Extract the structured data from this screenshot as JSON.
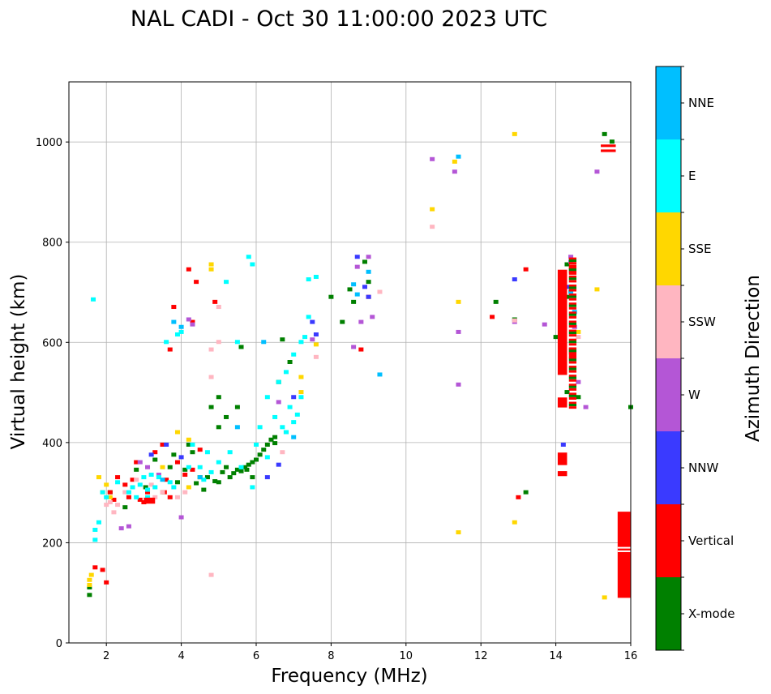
{
  "chart_data": {
    "type": "scatter",
    "title": "NAL CADI - Oct 30 11:00:00 2023 UTC",
    "xlabel": "Frequency (MHz)",
    "ylabel": "Virtual height (km)",
    "xlim": [
      1,
      16
    ],
    "ylim": [
      0,
      1120
    ],
    "xticks": [
      2,
      4,
      6,
      8,
      10,
      12,
      14,
      16
    ],
    "yticks": [
      0,
      200,
      400,
      600,
      800,
      1000
    ],
    "grid": true,
    "colorbar": {
      "label": "Azimuth Direction",
      "categories": [
        "X-mode",
        "Vertical",
        "NNW",
        "W",
        "SSW",
        "SSE",
        "E",
        "NNE"
      ],
      "colors": [
        "#008000",
        "#ff0000",
        "#3a3aff",
        "#b456d6",
        "#ffb6c1",
        "#ffd700",
        "#00ffff",
        "#00bfff"
      ]
    },
    "series": [
      {
        "name": "X-mode",
        "points": [
          [
            1.55,
            95
          ],
          [
            1.55,
            110
          ],
          [
            2.1,
            300
          ],
          [
            2.5,
            270
          ],
          [
            3.05,
            310
          ],
          [
            3.5,
            300
          ],
          [
            3.7,
            350
          ],
          [
            3.9,
            320
          ],
          [
            4.1,
            345
          ],
          [
            4.2,
            395
          ],
          [
            4.5,
            330
          ],
          [
            4.7,
            330
          ],
          [
            4.9,
            322
          ],
          [
            5.0,
            320
          ],
          [
            5.1,
            340
          ],
          [
            5.2,
            350
          ],
          [
            5.3,
            330
          ],
          [
            5.4,
            338
          ],
          [
            5.5,
            345
          ],
          [
            5.6,
            342
          ],
          [
            5.7,
            350
          ],
          [
            5.8,
            355
          ],
          [
            5.9,
            360
          ],
          [
            6.0,
            365
          ],
          [
            6.1,
            375
          ],
          [
            6.2,
            385
          ],
          [
            6.3,
            395
          ],
          [
            6.4,
            405
          ],
          [
            6.5,
            410
          ],
          [
            6.5,
            398
          ],
          [
            6.8,
            420
          ],
          [
            5.0,
            430
          ],
          [
            5.2,
            450
          ],
          [
            5.5,
            470
          ],
          [
            5.0,
            490
          ],
          [
            5.6,
            590
          ],
          [
            6.7,
            605
          ],
          [
            6.6,
            520
          ],
          [
            6.9,
            560
          ],
          [
            8.0,
            690
          ],
          [
            8.3,
            640
          ],
          [
            8.5,
            705
          ],
          [
            8.6,
            680
          ],
          [
            8.9,
            760
          ],
          [
            9.0,
            720
          ],
          [
            12.4,
            680
          ],
          [
            12.9,
            645
          ],
          [
            13.2,
            300
          ],
          [
            14.0,
            610
          ],
          [
            14.3,
            755
          ],
          [
            14.3,
            690
          ],
          [
            14.3,
            500
          ],
          [
            14.6,
            490
          ],
          [
            15.3,
            1015
          ],
          [
            15.5,
            1000
          ],
          [
            16.0,
            470
          ],
          [
            4.8,
            470
          ],
          [
            4.3,
            380
          ],
          [
            3.8,
            375
          ],
          [
            3.3,
            365
          ],
          [
            2.8,
            345
          ],
          [
            5.75,
            345
          ],
          [
            4.6,
            305
          ],
          [
            4.4,
            318
          ],
          [
            5.9,
            330
          ]
        ]
      },
      {
        "name": "Vertical",
        "points": [
          [
            1.7,
            150
          ],
          [
            1.9,
            145
          ],
          [
            2.0,
            120
          ],
          [
            2.1,
            300
          ],
          [
            2.3,
            330
          ],
          [
            2.5,
            315
          ],
          [
            2.6,
            290
          ],
          [
            2.8,
            360
          ],
          [
            2.9,
            285
          ],
          [
            3.0,
            280
          ],
          [
            3.1,
            300
          ],
          [
            3.3,
            380
          ],
          [
            3.5,
            395
          ],
          [
            3.55,
            300
          ],
          [
            3.7,
            290
          ],
          [
            3.9,
            360
          ],
          [
            4.1,
            335
          ],
          [
            4.3,
            345
          ],
          [
            4.2,
            745
          ],
          [
            4.4,
            720
          ],
          [
            4.3,
            640
          ],
          [
            3.7,
            585
          ],
          [
            3.8,
            670
          ],
          [
            4.5,
            385
          ],
          [
            4.9,
            680
          ],
          [
            3.6,
            325
          ],
          [
            2.7,
            325
          ],
          [
            2.2,
            285
          ],
          [
            8.8,
            585
          ],
          [
            9.0,
            690
          ],
          [
            13.2,
            745
          ],
          [
            13.0,
            290
          ],
          [
            12.3,
            650
          ]
        ]
      },
      {
        "name": "NNW",
        "points": [
          [
            3.2,
            375
          ],
          [
            3.6,
            395
          ],
          [
            4.0,
            370
          ],
          [
            6.3,
            330
          ],
          [
            6.6,
            355
          ],
          [
            7.5,
            640
          ],
          [
            7.6,
            615
          ],
          [
            8.7,
            770
          ],
          [
            8.9,
            710
          ],
          [
            9.0,
            690
          ],
          [
            12.9,
            725
          ],
          [
            7.0,
            490
          ],
          [
            14.3,
            710
          ],
          [
            14.2,
            395
          ]
        ]
      },
      {
        "name": "W",
        "points": [
          [
            2.4,
            228
          ],
          [
            2.6,
            232
          ],
          [
            2.9,
            360
          ],
          [
            3.1,
            350
          ],
          [
            4.0,
            250
          ],
          [
            4.2,
            645
          ],
          [
            4.3,
            635
          ],
          [
            7.5,
            605
          ],
          [
            8.6,
            590
          ],
          [
            8.7,
            750
          ],
          [
            8.8,
            640
          ],
          [
            9.0,
            770
          ],
          [
            9.1,
            650
          ],
          [
            10.7,
            965
          ],
          [
            11.3,
            940
          ],
          [
            11.4,
            620
          ],
          [
            11.4,
            515
          ],
          [
            12.9,
            640
          ],
          [
            13.7,
            635
          ],
          [
            14.4,
            770
          ],
          [
            14.4,
            760
          ],
          [
            14.5,
            630
          ],
          [
            14.6,
            520
          ],
          [
            14.8,
            470
          ],
          [
            15.1,
            940
          ],
          [
            6.6,
            480
          ],
          [
            3.4,
            335
          ]
        ]
      },
      {
        "name": "SSW",
        "points": [
          [
            2.0,
            275
          ],
          [
            2.1,
            280
          ],
          [
            2.2,
            260
          ],
          [
            2.3,
            275
          ],
          [
            2.5,
            300
          ],
          [
            2.8,
            325
          ],
          [
            3.2,
            315
          ],
          [
            3.3,
            290
          ],
          [
            3.5,
            300
          ],
          [
            4.8,
            585
          ],
          [
            4.8,
            530
          ],
          [
            4.8,
            135
          ],
          [
            5.0,
            670
          ],
          [
            5.0,
            600
          ],
          [
            6.7,
            380
          ],
          [
            7.6,
            570
          ],
          [
            9.3,
            700
          ],
          [
            10.7,
            830
          ],
          [
            12.9,
            643
          ],
          [
            14.6,
            610
          ],
          [
            15.9,
            215
          ],
          [
            3.9,
            290
          ],
          [
            4.1,
            300
          ]
        ]
      },
      {
        "name": "SSE",
        "points": [
          [
            1.55,
            115
          ],
          [
            1.55,
            125
          ],
          [
            1.6,
            135
          ],
          [
            1.8,
            330
          ],
          [
            1.9,
            300
          ],
          [
            2.0,
            315
          ],
          [
            2.1,
            290
          ],
          [
            3.5,
            350
          ],
          [
            3.9,
            420
          ],
          [
            4.2,
            405
          ],
          [
            4.2,
            310
          ],
          [
            4.8,
            755
          ],
          [
            4.8,
            745
          ],
          [
            7.2,
            530
          ],
          [
            7.2,
            500
          ],
          [
            7.6,
            595
          ],
          [
            10.7,
            865
          ],
          [
            11.3,
            960
          ],
          [
            11.4,
            680
          ],
          [
            11.4,
            220
          ],
          [
            12.9,
            1015
          ],
          [
            12.9,
            240
          ],
          [
            14.6,
            620
          ],
          [
            15.1,
            705
          ],
          [
            15.3,
            90
          ],
          [
            4.5,
            330
          ]
        ]
      },
      {
        "name": "E",
        "points": [
          [
            1.65,
            685
          ],
          [
            1.7,
            205
          ],
          [
            1.7,
            225
          ],
          [
            1.8,
            240
          ],
          [
            1.9,
            300
          ],
          [
            2.0,
            290
          ],
          [
            2.3,
            320
          ],
          [
            2.6,
            300
          ],
          [
            2.8,
            290
          ],
          [
            2.9,
            315
          ],
          [
            3.0,
            330
          ],
          [
            3.1,
            305
          ],
          [
            3.2,
            335
          ],
          [
            3.3,
            310
          ],
          [
            3.6,
            600
          ],
          [
            3.7,
            320
          ],
          [
            3.8,
            310
          ],
          [
            3.9,
            615
          ],
          [
            4.0,
            620
          ],
          [
            4.2,
            350
          ],
          [
            4.3,
            395
          ],
          [
            4.5,
            350
          ],
          [
            4.7,
            380
          ],
          [
            5.0,
            360
          ],
          [
            5.2,
            720
          ],
          [
            5.3,
            380
          ],
          [
            5.5,
            600
          ],
          [
            5.8,
            770
          ],
          [
            5.9,
            755
          ],
          [
            6.0,
            395
          ],
          [
            6.3,
            370
          ],
          [
            6.5,
            450
          ],
          [
            6.7,
            430
          ],
          [
            6.8,
            420
          ],
          [
            6.9,
            470
          ],
          [
            7.0,
            440
          ],
          [
            7.1,
            455
          ],
          [
            7.2,
            490
          ],
          [
            7.3,
            610
          ],
          [
            7.4,
            725
          ],
          [
            7.6,
            730
          ],
          [
            5.9,
            310
          ],
          [
            6.1,
            430
          ],
          [
            6.3,
            490
          ],
          [
            6.6,
            520
          ],
          [
            6.8,
            540
          ],
          [
            7.0,
            575
          ],
          [
            7.2,
            600
          ],
          [
            7.4,
            650
          ],
          [
            3.1,
            290
          ],
          [
            2.7,
            310
          ],
          [
            3.4,
            330
          ],
          [
            4.6,
            325
          ],
          [
            4.8,
            340
          ],
          [
            5.6,
            350
          ]
        ]
      },
      {
        "name": "NNE",
        "points": [
          [
            3.5,
            325
          ],
          [
            3.8,
            640
          ],
          [
            4.0,
            630
          ],
          [
            4.5,
            330
          ],
          [
            5.5,
            430
          ],
          [
            6.2,
            600
          ],
          [
            7.0,
            410
          ],
          [
            8.6,
            715
          ],
          [
            8.7,
            695
          ],
          [
            9.0,
            740
          ],
          [
            9.3,
            535
          ],
          [
            11.4,
            970
          ],
          [
            14.4,
            700
          ],
          [
            14.5,
            660
          ]
        ]
      }
    ],
    "bars": [
      {
        "name": "Vertical",
        "x": [
          14.05,
          14.3
        ],
        "y": [
          535,
          745
        ]
      },
      {
        "name": "Vertical",
        "x": [
          14.05,
          14.3
        ],
        "y": [
          470,
          490
        ]
      },
      {
        "name": "Vertical",
        "x": [
          14.05,
          14.3
        ],
        "y": [
          355,
          380
        ]
      },
      {
        "name": "Vertical",
        "x": [
          14.05,
          14.3
        ],
        "y": [
          333,
          343
        ]
      },
      {
        "name": "Vertical",
        "x": [
          15.65,
          16.0
        ],
        "y": [
          90,
          262
        ]
      },
      {
        "name": "Vertical",
        "x": [
          14.35,
          14.55
        ],
        "y": [
          735,
          755
        ]
      },
      {
        "name": "Vertical",
        "x": [
          14.35,
          14.55
        ],
        "y": [
          570,
          590
        ]
      },
      {
        "name": "Vertical",
        "x": [
          15.2,
          15.6
        ],
        "y": [
          980,
          985
        ]
      },
      {
        "name": "Vertical",
        "x": [
          15.2,
          15.6
        ],
        "y": [
          990,
          995
        ]
      },
      {
        "name": "Vertical",
        "x": [
          3.0,
          3.3
        ],
        "y": [
          278,
          290
        ]
      }
    ],
    "stripes": [
      {
        "name": "Vertical",
        "x": [
          14.35,
          14.55
        ],
        "y": [
          470,
          770
        ],
        "step": 9
      },
      {
        "name": "X-mode",
        "x": [
          14.35,
          14.55
        ],
        "y": [
          475,
          765
        ],
        "step": 18
      }
    ]
  }
}
